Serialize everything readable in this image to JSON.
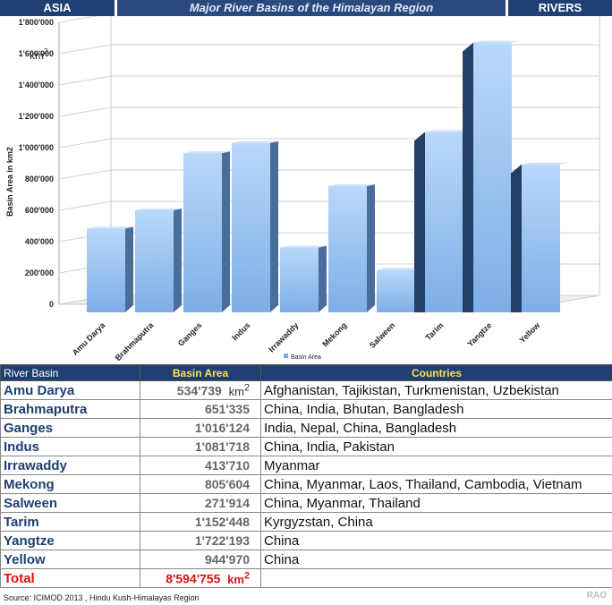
{
  "header": {
    "left": "ASIA",
    "title": "Major River Basins of the Himalayan Region",
    "right": "RIVERS"
  },
  "chart_data": {
    "type": "bar",
    "categories": [
      "Amu Darya",
      "Brahmaputra",
      "Ganges",
      "Indus",
      "Irrawaddy",
      "Mekong",
      "Salween",
      "Tarim",
      "Yangtze",
      "Yellow"
    ],
    "series": [
      {
        "name": "Basin Area",
        "values": [
          534739,
          651335,
          1016124,
          1081718,
          413710,
          805604,
          271914,
          1152448,
          1722193,
          944970
        ]
      }
    ],
    "ylabel": "Basin Area in km2",
    "yunit": "km",
    "ylim": [
      0,
      1800000
    ],
    "yticks": [
      "0",
      "200'000",
      "400'000",
      "600'000",
      "800'000",
      "1'000'000",
      "1'200'000",
      "1'400'000",
      "1'600'000",
      "1'800'000"
    ],
    "legend": "bottom-center",
    "grid": true,
    "colors": {
      "bar": "#7eaee6",
      "bar_dark": "#243f66",
      "side": "#4a6e9c"
    },
    "watermark": "RAO"
  },
  "table": {
    "headers": [
      "River Basin",
      "Basin Area",
      "Countries"
    ],
    "unit": "km",
    "rows": [
      {
        "river": "Amu Darya",
        "area": "534'739",
        "countries": "Afghanistan, Tajikistan, Turkmenistan, Uzbekistan"
      },
      {
        "river": "Brahmaputra",
        "area": "651'335",
        "countries": "China, India, Bhutan, Bangladesh"
      },
      {
        "river": "Ganges",
        "area": "1'016'124",
        "countries": "India, Nepal, China, Bangladesh"
      },
      {
        "river": "Indus",
        "area": "1'081'718",
        "countries": "China, India, Pakistan"
      },
      {
        "river": "Irrawaddy",
        "area": "413'710",
        "countries": "Myanmar"
      },
      {
        "river": "Mekong",
        "area": "805'604",
        "countries": "China, Myanmar, Laos, Thailand, Cambodia, Vietnam"
      },
      {
        "river": "Salween",
        "area": "271'914",
        "countries": "China, Myanmar, Thailand"
      },
      {
        "river": "Tarim",
        "area": "1'152'448",
        "countries": "Kyrgyzstan, China"
      },
      {
        "river": "Yangtze",
        "area": "1'722'193",
        "countries": "China"
      },
      {
        "river": "Yellow",
        "area": "944'970",
        "countries": "China"
      }
    ],
    "total_label": "Total",
    "total_area": "8'594'755"
  },
  "source": "Source: ICIMOD 2013 , Hindu Kush-Himalayas Region",
  "watermark": "RAO"
}
